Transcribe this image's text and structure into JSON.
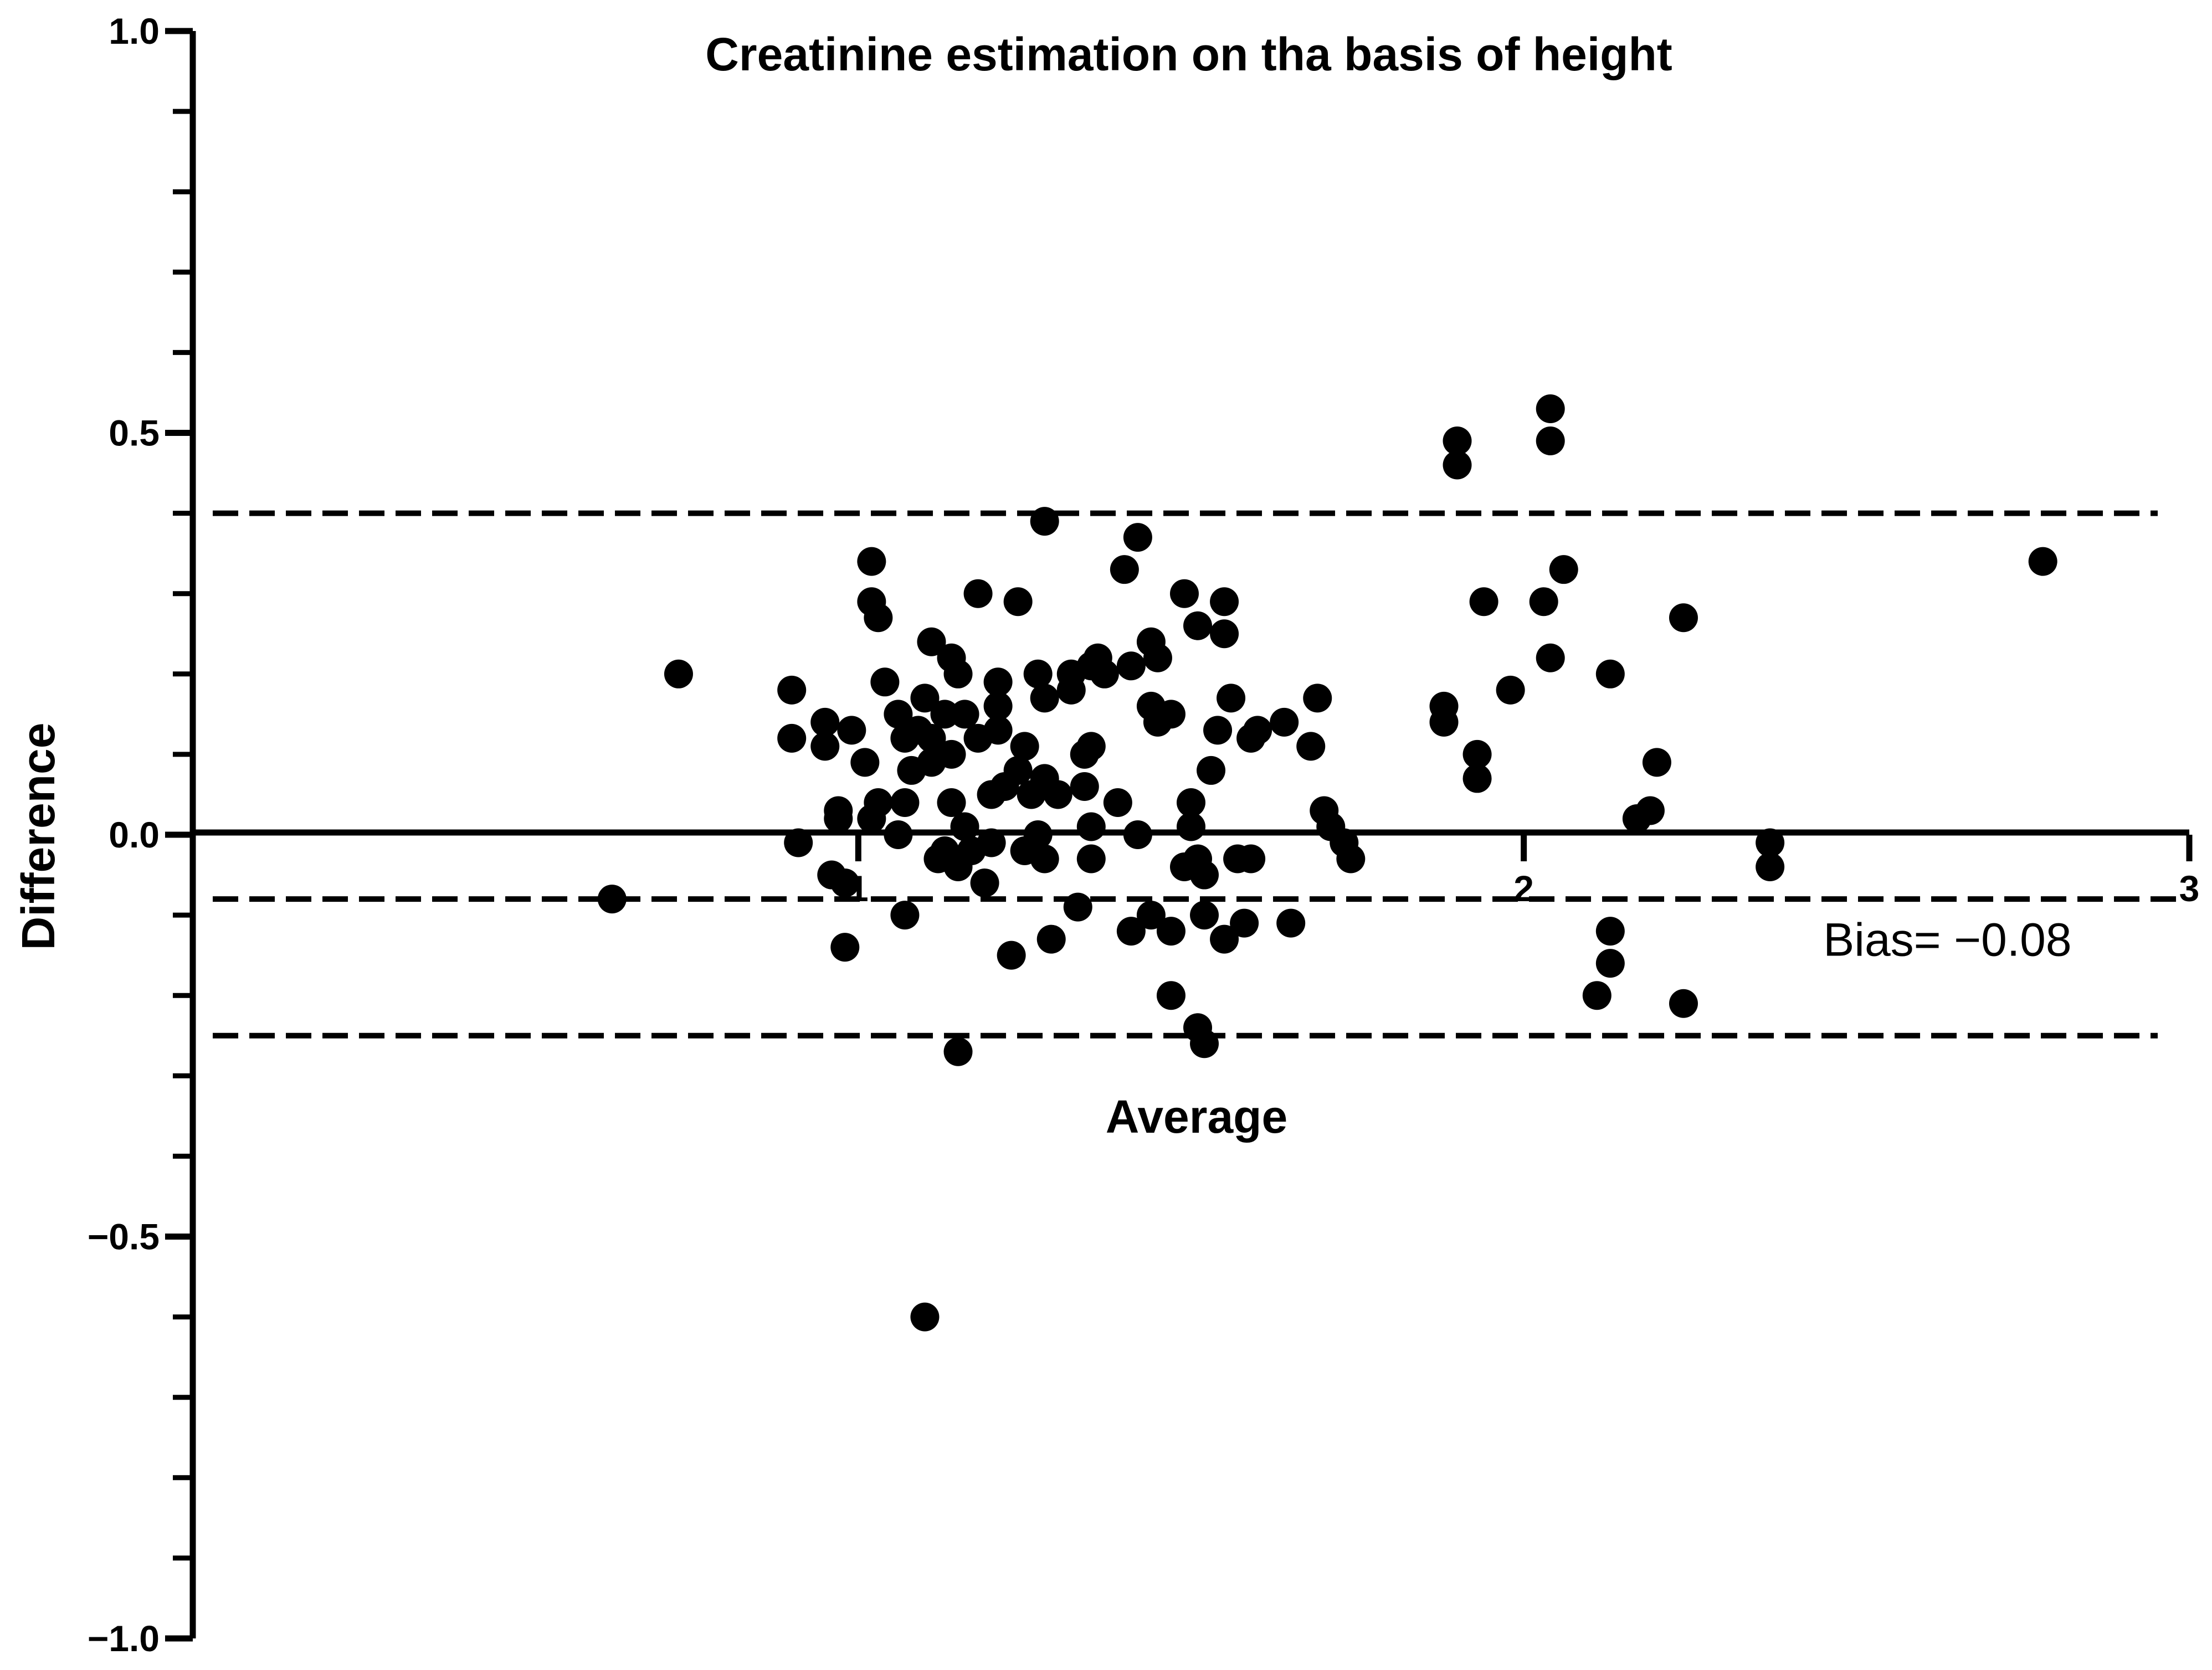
{
  "chart_data": {
    "type": "scatter",
    "title": "Creatinine estimation on tha basis of height",
    "xlabel": "Average",
    "ylabel": "Difference",
    "xlim": [
      0,
      3
    ],
    "ylim": [
      -1.0,
      1.0
    ],
    "x_ticks": [
      {
        "value": 1,
        "label": "1"
      },
      {
        "value": 2,
        "label": "2"
      },
      {
        "value": 3,
        "label": "3"
      }
    ],
    "y_ticks": [
      {
        "value": 1.0,
        "label": "1.0"
      },
      {
        "value": 0.5,
        "label": "0.5"
      },
      {
        "value": 0.0,
        "label": "0.0"
      },
      {
        "value": -0.5,
        "label": "−0.5"
      },
      {
        "value": -1.0,
        "label": "−1.0"
      }
    ],
    "reference_lines": [
      {
        "name": "upper-limit",
        "y": 0.4,
        "style": "dashed"
      },
      {
        "name": "bias",
        "y": -0.08,
        "style": "dashed"
      },
      {
        "name": "lower-limit",
        "y": -0.25,
        "style": "dashed"
      }
    ],
    "annotations": [
      {
        "text": "Bias= −0.08",
        "x": 2.45,
        "y": -0.13
      }
    ],
    "grid": false,
    "legend": "none",
    "marker_color": "#000000",
    "series": [
      {
        "points": [
          [
            0.63,
            -0.08
          ],
          [
            0.73,
            0.2
          ],
          [
            0.9,
            0.18
          ],
          [
            0.9,
            0.12
          ],
          [
            0.91,
            -0.01
          ],
          [
            0.95,
            0.14
          ],
          [
            0.95,
            0.11
          ],
          [
            0.96,
            -0.05
          ],
          [
            0.97,
            0.02
          ],
          [
            0.97,
            0.03
          ],
          [
            0.98,
            -0.06
          ],
          [
            0.98,
            -0.14
          ],
          [
            0.99,
            0.13
          ],
          [
            1.01,
            0.09
          ],
          [
            1.02,
            0.02
          ],
          [
            1.02,
            0.29
          ],
          [
            1.02,
            0.34
          ],
          [
            1.03,
            0.27
          ],
          [
            1.03,
            0.04
          ],
          [
            1.04,
            0.19
          ],
          [
            1.06,
            0.0
          ],
          [
            1.06,
            0.15
          ],
          [
            1.07,
            0.12
          ],
          [
            1.07,
            -0.1
          ],
          [
            1.07,
            0.04
          ],
          [
            1.08,
            0.08
          ],
          [
            1.09,
            0.13
          ],
          [
            1.1,
            0.17
          ],
          [
            1.11,
            0.09
          ],
          [
            1.11,
            0.12
          ],
          [
            1.11,
            0.24
          ],
          [
            1.12,
            -0.03
          ],
          [
            1.13,
            0.15
          ],
          [
            1.13,
            -0.02
          ],
          [
            1.14,
            0.04
          ],
          [
            1.14,
            0.1
          ],
          [
            1.14,
            0.22
          ],
          [
            1.15,
            -0.04
          ],
          [
            1.15,
            0.2
          ],
          [
            1.15,
            -0.27
          ],
          [
            1.16,
            0.01
          ],
          [
            1.16,
            0.15
          ],
          [
            1.17,
            -0.02
          ],
          [
            1.18,
            0.12
          ],
          [
            1.18,
            0.3
          ],
          [
            1.19,
            -0.06
          ],
          [
            1.2,
            -0.01
          ],
          [
            1.2,
            0.05
          ],
          [
            1.21,
            0.19
          ],
          [
            1.21,
            0.16
          ],
          [
            1.21,
            0.13
          ],
          [
            1.22,
            0.06
          ],
          [
            1.23,
            -0.15
          ],
          [
            1.24,
            0.08
          ],
          [
            1.24,
            0.29
          ],
          [
            1.25,
            0.11
          ],
          [
            1.25,
            -0.02
          ],
          [
            1.26,
            0.05
          ],
          [
            1.27,
            0.0
          ],
          [
            1.27,
            0.2
          ],
          [
            1.28,
            0.07
          ],
          [
            1.28,
            0.17
          ],
          [
            1.28,
            0.39
          ],
          [
            1.28,
            -0.03
          ],
          [
            1.29,
            -0.13
          ],
          [
            1.3,
            0.05
          ],
          [
            1.32,
            0.2
          ],
          [
            1.32,
            0.18
          ],
          [
            1.33,
            -0.09
          ],
          [
            1.34,
            0.1
          ],
          [
            1.34,
            0.06
          ],
          [
            1.35,
            0.21
          ],
          [
            1.35,
            0.11
          ],
          [
            1.35,
            -0.03
          ],
          [
            1.35,
            0.01
          ],
          [
            1.36,
            0.22
          ],
          [
            1.37,
            0.2
          ],
          [
            1.39,
            0.04
          ],
          [
            1.4,
            0.33
          ],
          [
            1.41,
            -0.12
          ],
          [
            1.41,
            0.21
          ],
          [
            1.42,
            0.37
          ],
          [
            1.42,
            0.0
          ],
          [
            1.44,
            -0.1
          ],
          [
            1.44,
            0.24
          ],
          [
            1.44,
            0.16
          ],
          [
            1.45,
            0.22
          ],
          [
            1.45,
            0.14
          ],
          [
            1.47,
            0.15
          ],
          [
            1.47,
            -0.12
          ],
          [
            1.47,
            -0.2
          ],
          [
            1.49,
            0.3
          ],
          [
            1.49,
            -0.04
          ],
          [
            1.5,
            0.04
          ],
          [
            1.5,
            0.01
          ],
          [
            1.51,
            -0.03
          ],
          [
            1.51,
            0.26
          ],
          [
            1.51,
            -0.24
          ],
          [
            1.52,
            -0.05
          ],
          [
            1.52,
            -0.1
          ],
          [
            1.52,
            -0.26
          ],
          [
            1.53,
            0.08
          ],
          [
            1.54,
            0.13
          ],
          [
            1.55,
            -0.13
          ],
          [
            1.55,
            0.29
          ],
          [
            1.55,
            0.25
          ],
          [
            1.56,
            0.17
          ],
          [
            1.57,
            -0.03
          ],
          [
            1.58,
            -0.11
          ],
          [
            1.59,
            -0.03
          ],
          [
            1.59,
            0.12
          ],
          [
            1.6,
            0.13
          ],
          [
            1.64,
            0.14
          ],
          [
            1.65,
            -0.11
          ],
          [
            1.68,
            0.11
          ],
          [
            1.69,
            0.17
          ],
          [
            1.7,
            0.03
          ],
          [
            1.71,
            0.01
          ],
          [
            1.73,
            -0.01
          ],
          [
            1.74,
            -0.03
          ],
          [
            1.88,
            0.16
          ],
          [
            1.88,
            0.14
          ],
          [
            1.9,
            0.49
          ],
          [
            1.9,
            0.46
          ],
          [
            1.93,
            0.1
          ],
          [
            1.93,
            0.07
          ],
          [
            1.94,
            0.29
          ],
          [
            1.98,
            0.18
          ],
          [
            2.03,
            0.29
          ],
          [
            2.04,
            0.49
          ],
          [
            2.04,
            0.22
          ],
          [
            2.04,
            0.53
          ],
          [
            2.06,
            0.33
          ],
          [
            2.11,
            -0.2
          ],
          [
            2.13,
            -0.12
          ],
          [
            2.13,
            -0.16
          ],
          [
            2.13,
            0.2
          ],
          [
            2.17,
            0.02
          ],
          [
            2.19,
            0.03
          ],
          [
            2.2,
            0.09
          ],
          [
            2.24,
            0.27
          ],
          [
            2.24,
            -0.21
          ],
          [
            2.37,
            -0.01
          ],
          [
            2.37,
            -0.04
          ],
          [
            2.78,
            0.34
          ],
          [
            1.1,
            -0.6
          ]
        ]
      }
    ]
  }
}
